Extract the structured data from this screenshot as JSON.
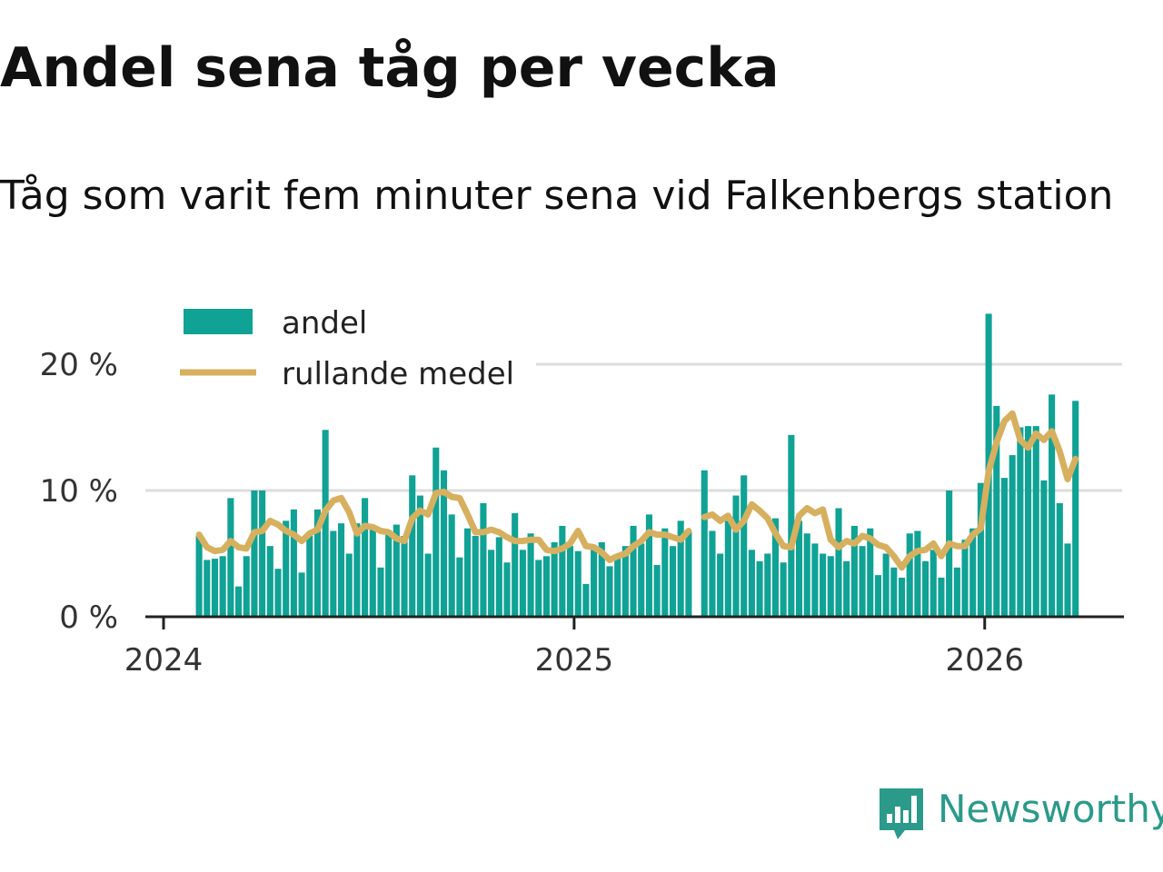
{
  "header": {
    "title": "Andel sena tåg per vecka",
    "subtitle": "Tåg som varit fem minuter sena vid Falkenbergs station"
  },
  "brand": {
    "name": "Newsworthy"
  },
  "colors": {
    "bar": "#0fa295",
    "line": "#d6b05f",
    "grid": "#dddddd",
    "axis": "#222222",
    "brand": "#2b9a8a"
  },
  "chart_data": {
    "type": "bar",
    "title": "Andel sena tåg per vecka",
    "subtitle": "Tåg som varit fem minuter sena vid Falkenbergs station",
    "xlabel": "",
    "ylabel": "",
    "ylim": [
      0,
      25
    ],
    "y_ticks": [
      0,
      10,
      20
    ],
    "y_tick_labels": [
      "0 %",
      "10 %",
      "20 %"
    ],
    "x_tick_labels": [
      "2024",
      "2025",
      "2026"
    ],
    "x_tick_weeks": [
      0,
      52,
      104
    ],
    "legend": {
      "position": "top-left",
      "entries": [
        "andel",
        "rullande medel"
      ]
    },
    "series": [
      {
        "name": "andel",
        "mark": "bar",
        "start_week": 4,
        "values": [
          6.4,
          4.5,
          4.6,
          4.8,
          9.4,
          2.4,
          4.8,
          10.0,
          10.0,
          5.6,
          3.8,
          7.6,
          8.5,
          3.5,
          6.4,
          8.5,
          14.8,
          6.8,
          7.4,
          5.0,
          7.4,
          9.4,
          7.2,
          3.9,
          6.8,
          7.3,
          6.4,
          11.2,
          9.6,
          5.0,
          13.4,
          11.6,
          8.1,
          4.7,
          7.0,
          6.4,
          9.0,
          5.3,
          6.3,
          4.3,
          8.2,
          5.3,
          6.6,
          4.5,
          4.8,
          5.9,
          7.2,
          5.6,
          5.2,
          2.6,
          5.3,
          5.9,
          4.0,
          4.8,
          5.6,
          7.2,
          5.8,
          8.1,
          4.1,
          7.0,
          5.6,
          7.6,
          6.8,
          null,
          11.6,
          6.8,
          5.0,
          7.6,
          9.6,
          11.2,
          5.3,
          4.4,
          5.0,
          7.8,
          4.3,
          14.4,
          7.6,
          6.6,
          5.8,
          5.0,
          4.8,
          8.6,
          4.4,
          7.2,
          5.6,
          7.0,
          3.3,
          5.0,
          3.9,
          3.1,
          6.6,
          6.8,
          4.4,
          5.3,
          3.1,
          10.0,
          3.9,
          6.1,
          7.0,
          10.6,
          24.0,
          16.7,
          11.0,
          12.8,
          15.0,
          15.1,
          15.1,
          10.8,
          17.6,
          9.0,
          5.8,
          17.1
        ]
      },
      {
        "name": "rullande medel",
        "mark": "line",
        "start_week": 4,
        "values": [
          6.5,
          5.5,
          5.2,
          5.3,
          6.0,
          5.5,
          5.4,
          6.7,
          6.8,
          7.6,
          7.3,
          6.8,
          6.5,
          6.0,
          6.6,
          6.9,
          8.4,
          9.2,
          9.4,
          8.3,
          6.6,
          7.2,
          7.1,
          6.8,
          6.7,
          6.2,
          6.0,
          7.8,
          8.4,
          8.1,
          9.8,
          9.9,
          9.5,
          9.4,
          8.1,
          6.7,
          6.7,
          6.9,
          6.7,
          6.3,
          6.0,
          6.0,
          6.1,
          6.1,
          5.3,
          5.2,
          5.4,
          5.8,
          6.8,
          5.6,
          5.5,
          5.1,
          4.5,
          4.8,
          5.0,
          5.6,
          6.0,
          6.7,
          6.5,
          6.5,
          6.3,
          6.1,
          6.8,
          null,
          7.9,
          8.1,
          7.6,
          8.0,
          6.9,
          7.6,
          8.9,
          8.4,
          7.8,
          6.6,
          5.6,
          5.5,
          8.0,
          8.6,
          8.2,
          8.5,
          6.1,
          5.5,
          6.0,
          5.8,
          6.4,
          6.2,
          5.7,
          5.5,
          4.8,
          3.9,
          4.8,
          5.2,
          5.3,
          5.8,
          4.8,
          5.8,
          5.6,
          5.6,
          6.5,
          7.0,
          11.5,
          13.8,
          15.5,
          16.1,
          14.0,
          13.4,
          14.5,
          14.0,
          14.7,
          13.1,
          10.9,
          12.5
        ]
      }
    ]
  }
}
